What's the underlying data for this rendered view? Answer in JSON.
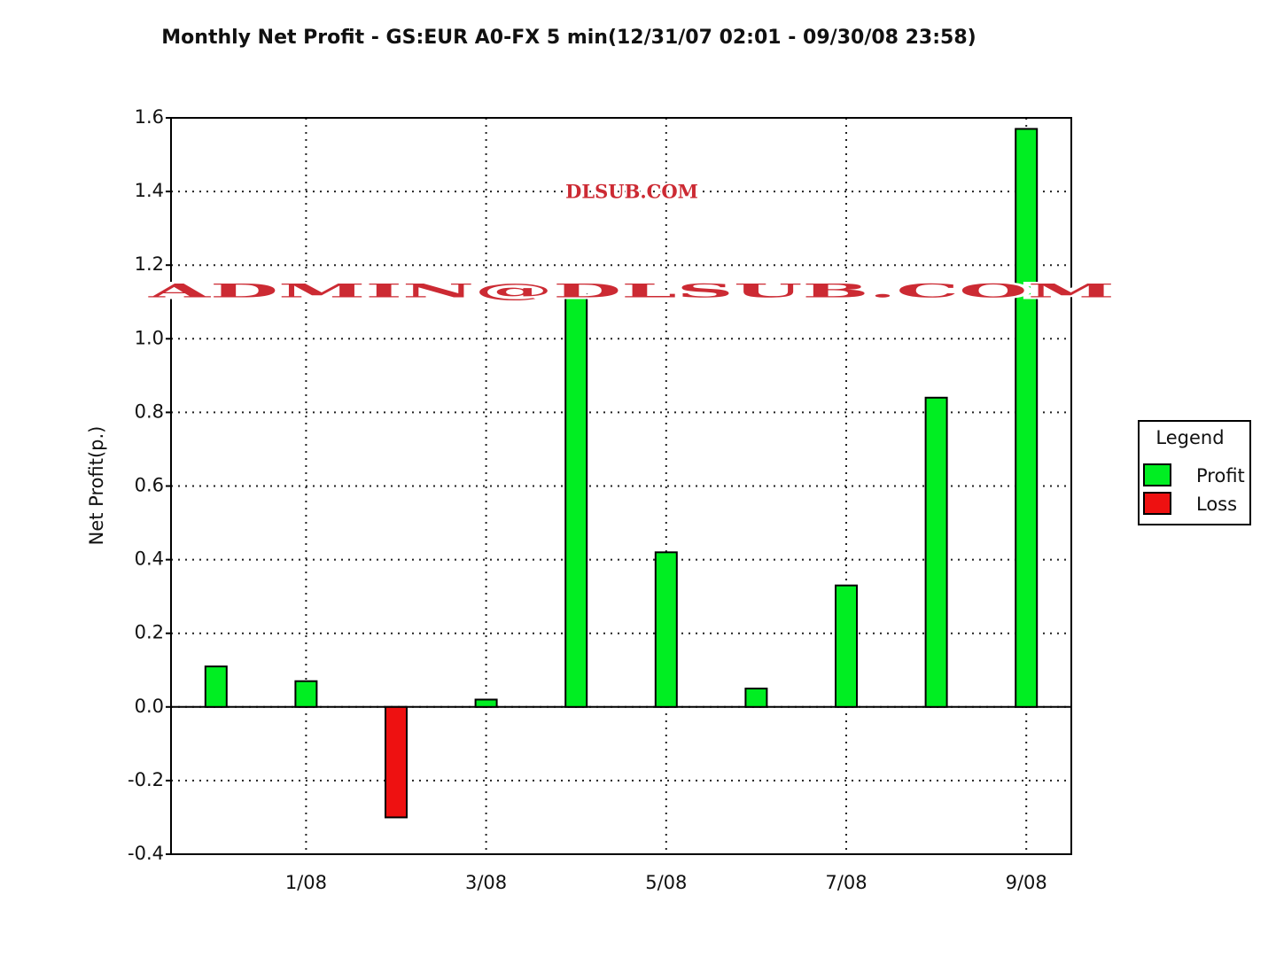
{
  "chart_data": {
    "type": "bar",
    "title": "Monthly Net Profit - GS:EUR A0-FX 5 min(12/31/07 02:01 - 09/30/08 23:58)",
    "y_label": "Net Profit(p.)",
    "categories": [
      null,
      "1/08",
      null,
      "3/08",
      null,
      "5/08",
      null,
      "7/08",
      null,
      "9/08"
    ],
    "series": [
      {
        "name": "Profit",
        "color": "#00ee22",
        "values": [
          0.11,
          0.07,
          null,
          0.02,
          1.12,
          0.42,
          0.05,
          0.33,
          0.84,
          1.57
        ]
      },
      {
        "name": "Loss",
        "color": "#ee1111",
        "values": [
          null,
          null,
          -0.3,
          null,
          null,
          null,
          null,
          null,
          null,
          null
        ]
      }
    ],
    "ylim": [
      -0.4,
      1.6
    ],
    "yticks": [
      -0.4,
      -0.2,
      {
        "value": 0,
        "label": "0.0"
      },
      0.2,
      0.4,
      0.6,
      0.8,
      {
        "value": 1,
        "label": "1.0"
      },
      1.2,
      1.4,
      1.6
    ],
    "grid": true,
    "legend_title": "Legend",
    "legend_position": "right",
    "watermark": [
      "DLSUB.COM",
      "ADMIN@DLSUB.COM"
    ]
  }
}
